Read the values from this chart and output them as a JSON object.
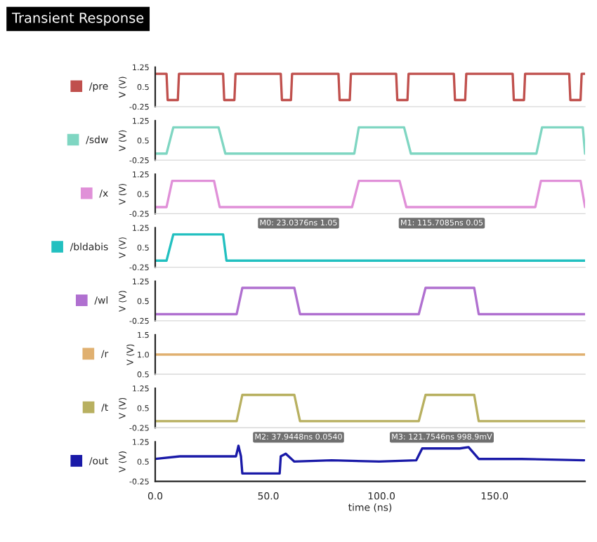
{
  "chart_data": [
    {
      "type": "line",
      "title": "Transient Response",
      "ylabel": "V (V)",
      "legend": "left",
      "tick_labels": "y",
      "xlim": [
        0,
        190
      ],
      "ylim": [
        -0.25,
        1.25
      ],
      "yticks": [
        -0.25,
        0.5,
        1.25
      ],
      "series": [
        {
          "name": "/pre",
          "color": "#c0504d",
          "x": [
            0,
            5,
            5.5,
            10,
            10.5,
            30,
            30.5,
            35,
            35.5,
            55.5,
            56,
            60,
            60.5,
            81,
            81.5,
            86,
            86.5,
            106.5,
            107,
            111.5,
            112,
            132,
            132.5,
            137,
            137.5,
            158,
            158.5,
            163,
            163.5,
            183,
            183.5,
            188,
            188.5,
            190
          ],
          "values": [
            1,
            1,
            0,
            0,
            1,
            1,
            0,
            0,
            1,
            1,
            0,
            0,
            1,
            1,
            0,
            0,
            1,
            1,
            0,
            0,
            1,
            1,
            0,
            0,
            1,
            1,
            0,
            0,
            1,
            1,
            0,
            0,
            1,
            1
          ]
        }
      ]
    },
    {
      "type": "line",
      "ylabel": "V (V)",
      "legend": "left",
      "tick_labels": "y",
      "xlim": [
        0,
        190
      ],
      "ylim": [
        -0.25,
        1.25
      ],
      "yticks": [
        -0.25,
        0.5,
        1.25
      ],
      "series": [
        {
          "name": "/sdw",
          "color": "#7fd6c2",
          "x": [
            0,
            5,
            8,
            28,
            31,
            88,
            90,
            110,
            113,
            168.5,
            171,
            189,
            190
          ],
          "values": [
            0,
            0,
            1,
            1,
            0,
            0,
            1,
            1,
            0,
            0,
            1,
            1,
            0
          ]
        }
      ]
    },
    {
      "type": "line",
      "ylabel": "V (V)",
      "legend": "left",
      "tick_labels": "y",
      "xlim": [
        0,
        190
      ],
      "ylim": [
        -0.25,
        1.25
      ],
      "yticks": [
        -0.25,
        0.5,
        1.25
      ],
      "series": [
        {
          "name": "/x",
          "color": "#e090d8",
          "x": [
            0,
            5,
            7.5,
            26,
            28.5,
            87,
            90,
            108,
            111,
            168,
            170.5,
            188,
            190
          ],
          "values": [
            0,
            0,
            1,
            1,
            0,
            0,
            1,
            1,
            0,
            0,
            1,
            1,
            0
          ]
        }
      ]
    },
    {
      "type": "line",
      "ylabel": "V (V)",
      "legend": "left",
      "tick_labels": "y",
      "xlim": [
        0,
        190
      ],
      "ylim": [
        -0.25,
        1.25
      ],
      "yticks": [
        -0.25,
        0.5,
        1.25
      ],
      "annotations": [
        "M0: 23.0376ns 1.05",
        "M1: 115.7085ns 0.05"
      ],
      "series": [
        {
          "name": "/bldabis",
          "color": "#22c0c0",
          "x": [
            0,
            5,
            8,
            30,
            31.5,
            190
          ],
          "values": [
            0,
            0,
            1,
            1,
            0,
            0
          ]
        }
      ]
    },
    {
      "type": "line",
      "ylabel": "V (V)",
      "legend": "left",
      "tick_labels": "y",
      "xlim": [
        0,
        190
      ],
      "ylim": [
        -0.25,
        1.25
      ],
      "yticks": [
        -0.25,
        0.5,
        1.25
      ],
      "series": [
        {
          "name": "/wl",
          "color": "#b070d0",
          "x": [
            0,
            36,
            38.5,
            61.5,
            64,
            116.5,
            119.5,
            141,
            143,
            190
          ],
          "values": [
            0,
            0,
            1,
            1,
            0,
            0,
            1,
            1,
            0,
            0
          ]
        }
      ]
    },
    {
      "type": "line",
      "ylabel": "V (V)",
      "legend": "left",
      "tick_labels": "y",
      "xlim": [
        0,
        190
      ],
      "ylim": [
        0.5,
        1.5
      ],
      "yticks": [
        0.5,
        {
          "value": 1.0,
          "label": "1.0"
        },
        1.5
      ],
      "series": [
        {
          "name": "/r",
          "color": "#e0b070",
          "x": [
            0,
            190
          ],
          "values": [
            1.0,
            1.0
          ]
        }
      ]
    },
    {
      "type": "line",
      "ylabel": "V (V)",
      "legend": "left",
      "tick_labels": "y",
      "xlim": [
        0,
        190
      ],
      "ylim": [
        -0.25,
        1.25
      ],
      "yticks": [
        -0.25,
        0.5,
        1.25
      ],
      "series": [
        {
          "name": "/t",
          "color": "#b8b060",
          "x": [
            0,
            36,
            38.5,
            61.5,
            64,
            116.5,
            119.5,
            141,
            143,
            190
          ],
          "values": [
            0,
            0,
            1,
            1,
            0,
            0,
            1,
            1,
            0,
            0
          ]
        }
      ]
    },
    {
      "type": "line",
      "ylabel": "V (V)",
      "xlabel": "time (ns)",
      "legend": "left",
      "xlim": [
        0,
        190
      ],
      "ylim": [
        -0.25,
        1.25
      ],
      "yticks": [
        -0.25,
        0.5,
        1.25
      ],
      "xticks": [
        {
          "value": 0,
          "label": "0.0"
        },
        {
          "value": 50,
          "label": "50.0"
        },
        {
          "value": 100,
          "label": "100.0"
        },
        {
          "value": 150,
          "label": "150.0"
        }
      ],
      "annotations": [
        "M2: 37.9448ns 0.0540",
        "M3: 121.7546ns 998.9mV"
      ],
      "series": [
        {
          "name": "/out",
          "color": "#1a1aa8",
          "x": [
            0,
            11,
            33,
            35.7,
            36.8,
            37.9,
            38.5,
            55,
            55.5,
            57.7,
            61.5,
            78,
            99,
            115.4,
            118,
            134.6,
            138.5,
            143,
            162,
            189.6
          ],
          "values": [
            0.6,
            0.7,
            0.7,
            0.7,
            1.1,
            0.7,
            0.05,
            0.05,
            0.7,
            0.8,
            0.5,
            0.55,
            0.5,
            0.55,
            1.0,
            1.0,
            1.05,
            0.6,
            0.6,
            0.55
          ]
        }
      ]
    }
  ]
}
